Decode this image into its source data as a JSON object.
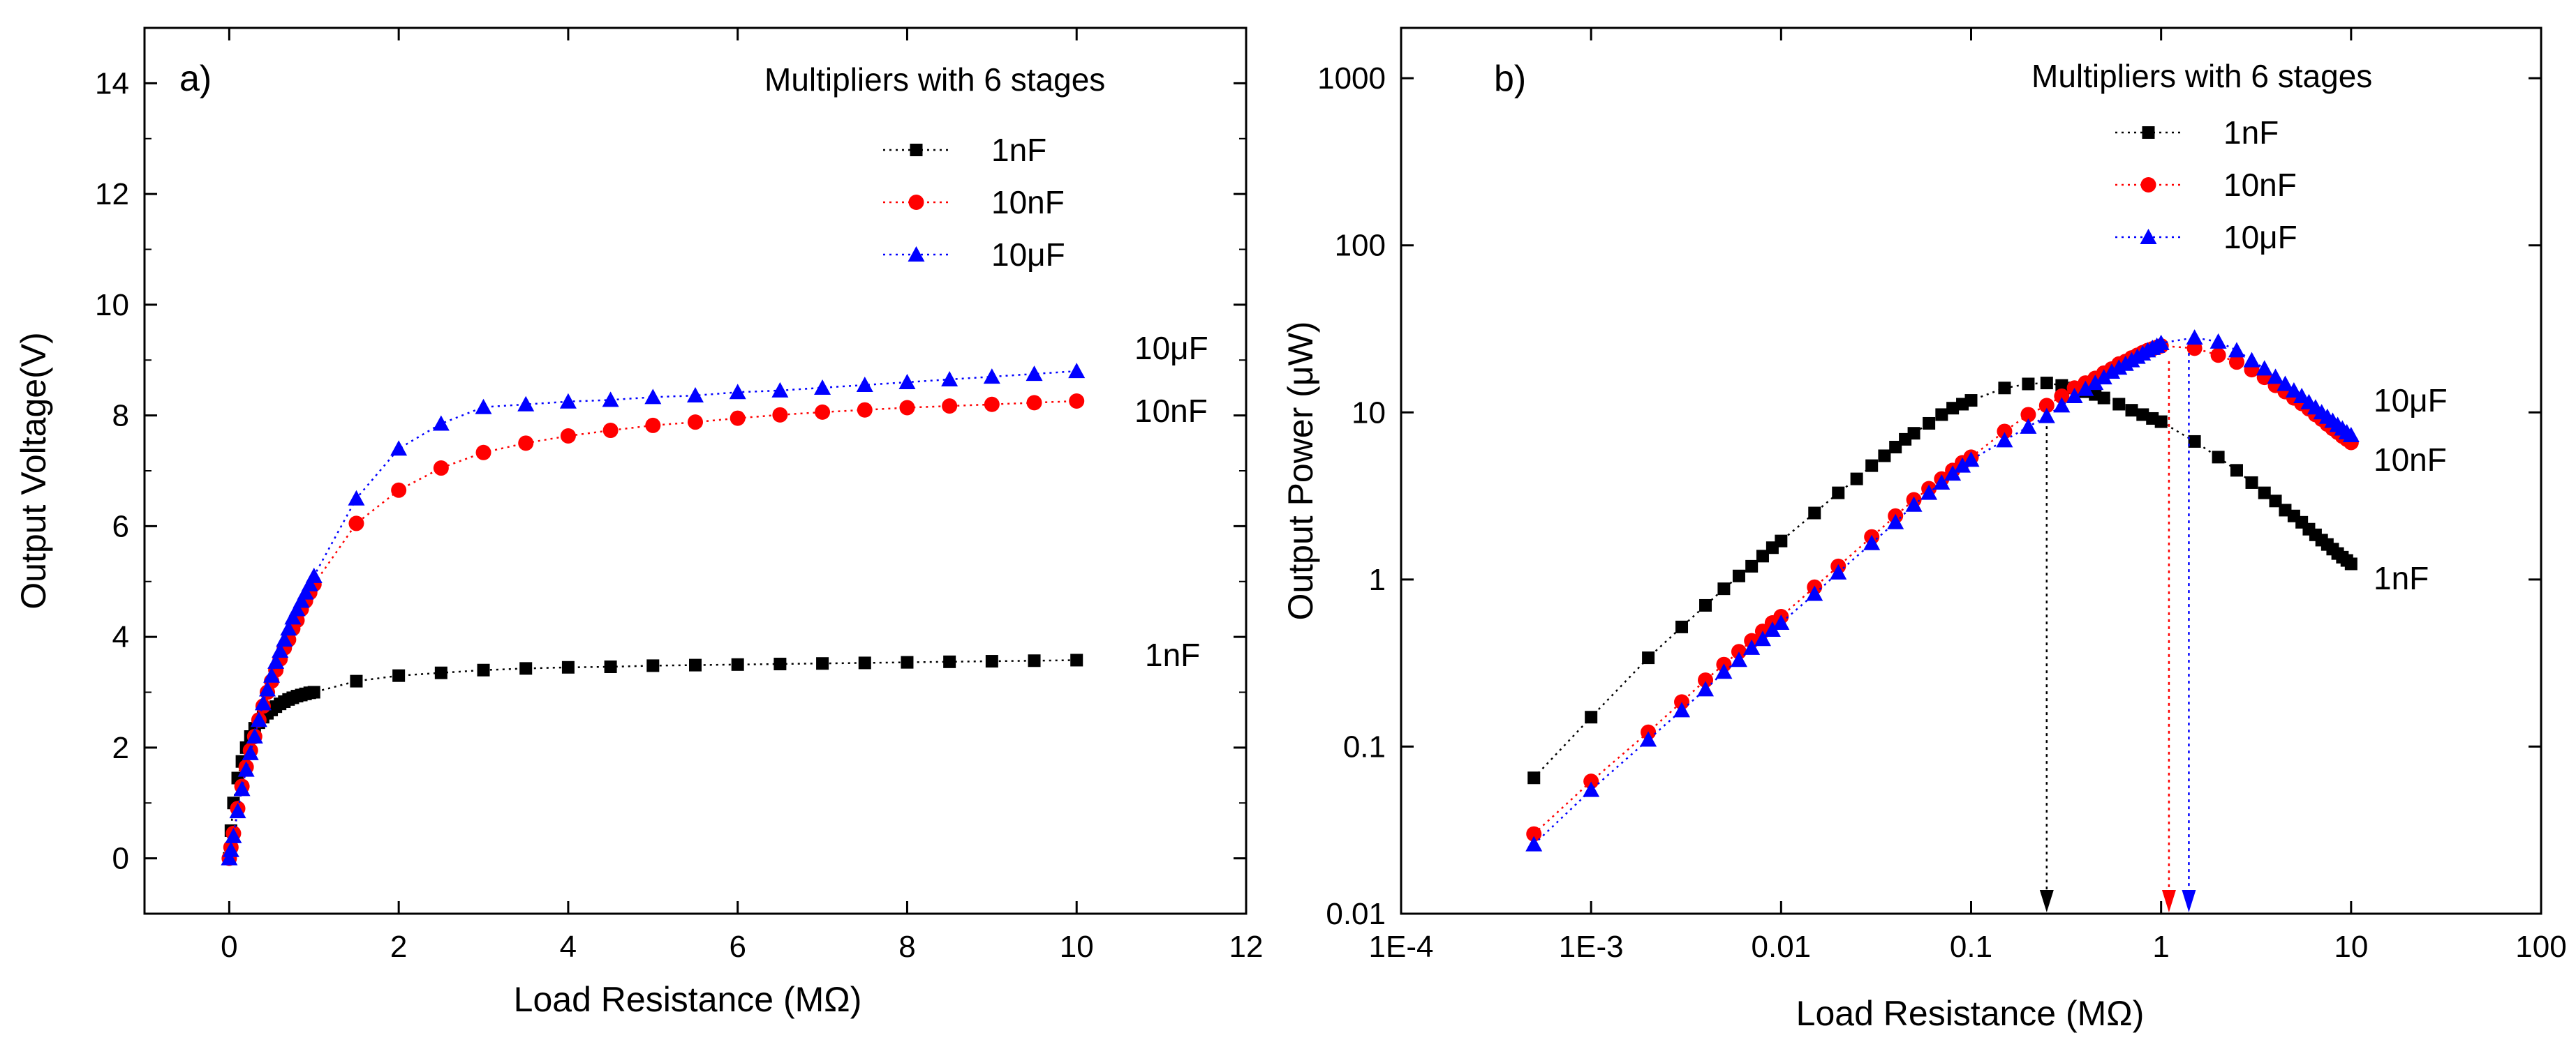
{
  "chart_data": [
    {
      "id": "a",
      "type": "scatter",
      "panel_label": "a)",
      "xlabel": "Load Resistance (MΩ)",
      "ylabel": "Output Voltage(V)",
      "xlim": [
        -1,
        12
      ],
      "ylim": [
        -1,
        15
      ],
      "xticks": [
        0,
        2,
        4,
        6,
        8,
        10,
        12
      ],
      "yticks": [
        0,
        2,
        4,
        6,
        8,
        10,
        12,
        14
      ],
      "xscale": "linear",
      "yscale": "linear",
      "grid": false,
      "legend_title": "Multipliers with 6 stages",
      "legend_position": "top-right",
      "series": [
        {
          "name": "1nF",
          "color": "#000000",
          "marker": "square",
          "end_label": "1nF",
          "x": [
            0.0,
            0.02,
            0.05,
            0.1,
            0.15,
            0.2,
            0.25,
            0.3,
            0.35,
            0.4,
            0.45,
            0.5,
            0.55,
            0.6,
            0.65,
            0.7,
            0.75,
            0.8,
            0.85,
            0.9,
            0.95,
            1.0,
            1.5,
            2.0,
            2.5,
            3.0,
            3.5,
            4.0,
            4.5,
            5.0,
            5.5,
            6.0,
            6.5,
            7.0,
            7.5,
            8.0,
            8.5,
            9.0,
            9.5,
            10.0
          ],
          "y": [
            0.0,
            0.5,
            1.0,
            1.45,
            1.75,
            2.0,
            2.2,
            2.35,
            2.45,
            2.55,
            2.62,
            2.68,
            2.74,
            2.79,
            2.83,
            2.87,
            2.9,
            2.93,
            2.95,
            2.97,
            2.99,
            3.0,
            3.2,
            3.3,
            3.35,
            3.4,
            3.43,
            3.45,
            3.46,
            3.48,
            3.49,
            3.5,
            3.51,
            3.52,
            3.53,
            3.54,
            3.55,
            3.56,
            3.57,
            3.58
          ]
        },
        {
          "name": "10nF",
          "color": "#ff0000",
          "marker": "circle",
          "end_label": "10nF",
          "x": [
            0.0,
            0.02,
            0.05,
            0.1,
            0.15,
            0.2,
            0.25,
            0.3,
            0.35,
            0.4,
            0.45,
            0.5,
            0.55,
            0.6,
            0.65,
            0.7,
            0.75,
            0.8,
            0.85,
            0.9,
            0.95,
            1.0,
            1.5,
            2.0,
            2.5,
            3.0,
            3.5,
            4.0,
            4.5,
            5.0,
            5.5,
            6.0,
            6.5,
            7.0,
            7.5,
            8.0,
            8.5,
            9.0,
            9.5,
            10.0
          ],
          "y": [
            0.0,
            0.2,
            0.45,
            0.9,
            1.3,
            1.65,
            1.95,
            2.2,
            2.5,
            2.75,
            3.0,
            3.2,
            3.4,
            3.6,
            3.8,
            3.95,
            4.15,
            4.3,
            4.5,
            4.65,
            4.8,
            4.95,
            6.05,
            6.65,
            7.05,
            7.33,
            7.5,
            7.63,
            7.73,
            7.82,
            7.88,
            7.95,
            8.01,
            8.06,
            8.1,
            8.14,
            8.17,
            8.2,
            8.23,
            8.26
          ]
        },
        {
          "name": "10μF",
          "color": "#0000ff",
          "marker": "triangle",
          "end_label": "10μF",
          "x": [
            0.0,
            0.02,
            0.05,
            0.1,
            0.15,
            0.2,
            0.25,
            0.3,
            0.35,
            0.4,
            0.45,
            0.5,
            0.55,
            0.6,
            0.65,
            0.7,
            0.75,
            0.8,
            0.85,
            0.9,
            0.95,
            1.0,
            1.5,
            2.0,
            2.5,
            3.0,
            3.5,
            4.0,
            4.5,
            5.0,
            5.5,
            6.0,
            6.5,
            7.0,
            7.5,
            8.0,
            8.5,
            9.0,
            9.5,
            10.0
          ],
          "y": [
            0.0,
            0.15,
            0.4,
            0.85,
            1.25,
            1.6,
            1.9,
            2.2,
            2.5,
            2.8,
            3.05,
            3.3,
            3.55,
            3.75,
            3.95,
            4.15,
            4.35,
            4.5,
            4.65,
            4.8,
            4.95,
            5.1,
            6.5,
            7.4,
            7.85,
            8.15,
            8.2,
            8.25,
            8.28,
            8.33,
            8.36,
            8.42,
            8.45,
            8.5,
            8.55,
            8.6,
            8.65,
            8.7,
            8.75,
            8.8
          ]
        }
      ]
    },
    {
      "id": "b",
      "type": "scatter",
      "panel_label": "b)",
      "xlabel": "Load Resistance (MΩ)",
      "ylabel": "Output Power (μW)",
      "xlim": [
        0.0001,
        100
      ],
      "ylim": [
        0.01,
        2000
      ],
      "xticks": [
        0.0001,
        0.001,
        0.01,
        0.1,
        1,
        10,
        100
      ],
      "xtick_labels": [
        "1E-4",
        "1E-3",
        "0.01",
        "0.1",
        "1",
        "10",
        "100"
      ],
      "yticks": [
        0.01,
        0.1,
        1,
        10,
        100,
        1000
      ],
      "ytick_labels": [
        "0.01",
        "0.1",
        "1",
        "10",
        "100",
        "1000"
      ],
      "xscale": "log",
      "yscale": "log",
      "grid": false,
      "legend_title": "Multipliers with 6 stages",
      "legend_position": "top-right",
      "series": [
        {
          "name": "1nF",
          "color": "#000000",
          "marker": "square",
          "end_label": "1nF",
          "peak_x": 0.25,
          "x": [
            0.0005,
            0.001,
            0.002,
            0.003,
            0.004,
            0.005,
            0.006,
            0.007,
            0.008,
            0.009,
            0.01,
            0.015,
            0.02,
            0.025,
            0.03,
            0.035,
            0.04,
            0.045,
            0.05,
            0.06,
            0.07,
            0.08,
            0.09,
            0.1,
            0.15,
            0.2,
            0.25,
            0.3,
            0.35,
            0.4,
            0.45,
            0.5,
            0.6,
            0.7,
            0.8,
            0.9,
            1.0,
            1.5,
            2.0,
            2.5,
            3.0,
            3.5,
            4.0,
            4.5,
            5.0,
            5.5,
            6.0,
            6.5,
            7.0,
            7.5,
            8.0,
            8.5,
            9.0,
            9.5,
            10.0
          ],
          "y": [
            0.065,
            0.15,
            0.34,
            0.52,
            0.7,
            0.88,
            1.05,
            1.2,
            1.38,
            1.55,
            1.7,
            2.5,
            3.3,
            4.0,
            4.8,
            5.5,
            6.2,
            6.9,
            7.5,
            8.6,
            9.7,
            10.6,
            11.2,
            11.8,
            14.0,
            14.8,
            15.0,
            14.5,
            14.0,
            13.3,
            12.8,
            12.2,
            11.2,
            10.3,
            9.7,
            9.2,
            8.8,
            6.7,
            5.4,
            4.5,
            3.8,
            3.3,
            2.95,
            2.6,
            2.4,
            2.2,
            2.0,
            1.85,
            1.72,
            1.62,
            1.52,
            1.43,
            1.36,
            1.3,
            1.24
          ]
        },
        {
          "name": "10nF",
          "color": "#ff0000",
          "marker": "circle",
          "end_label": "10nF",
          "peak_x": 1.1,
          "x": [
            0.0005,
            0.001,
            0.002,
            0.003,
            0.004,
            0.005,
            0.006,
            0.007,
            0.008,
            0.009,
            0.01,
            0.015,
            0.02,
            0.03,
            0.04,
            0.05,
            0.06,
            0.07,
            0.08,
            0.09,
            0.1,
            0.15,
            0.2,
            0.25,
            0.3,
            0.35,
            0.4,
            0.45,
            0.5,
            0.55,
            0.6,
            0.65,
            0.7,
            0.75,
            0.8,
            0.85,
            0.9,
            0.95,
            1.0,
            1.5,
            2.0,
            2.5,
            3.0,
            3.5,
            4.0,
            4.5,
            5.0,
            5.5,
            6.0,
            6.5,
            7.0,
            7.5,
            8.0,
            8.5,
            9.0,
            9.5,
            10.0
          ],
          "y": [
            0.03,
            0.062,
            0.122,
            0.185,
            0.25,
            0.31,
            0.37,
            0.43,
            0.49,
            0.55,
            0.6,
            0.9,
            1.2,
            1.8,
            2.4,
            3.0,
            3.5,
            4.0,
            4.5,
            5.0,
            5.4,
            7.7,
            9.7,
            11.0,
            12.5,
            14.0,
            15.0,
            16.0,
            17.2,
            18.2,
            19.5,
            20.2,
            21.2,
            22.0,
            22.8,
            23.5,
            24.0,
            24.5,
            25.0,
            24.2,
            22.0,
            20.0,
            18.0,
            16.2,
            14.5,
            13.3,
            12.2,
            11.3,
            10.5,
            9.7,
            9.1,
            8.5,
            8.0,
            7.6,
            7.2,
            6.9,
            6.6
          ]
        },
        {
          "name": "10μF",
          "color": "#0000ff",
          "marker": "triangle",
          "end_label": "10μF",
          "peak_x": 1.4,
          "x": [
            0.0005,
            0.001,
            0.002,
            0.003,
            0.004,
            0.005,
            0.006,
            0.007,
            0.008,
            0.009,
            0.01,
            0.015,
            0.02,
            0.03,
            0.04,
            0.05,
            0.06,
            0.07,
            0.08,
            0.09,
            0.1,
            0.15,
            0.2,
            0.25,
            0.3,
            0.35,
            0.4,
            0.45,
            0.5,
            0.55,
            0.6,
            0.65,
            0.7,
            0.75,
            0.8,
            0.85,
            0.9,
            0.95,
            1.0,
            1.5,
            2.0,
            2.5,
            3.0,
            3.5,
            4.0,
            4.5,
            5.0,
            5.5,
            6.0,
            6.5,
            7.0,
            7.5,
            8.0,
            8.5,
            9.0,
            9.5,
            10.0
          ],
          "y": [
            0.026,
            0.055,
            0.11,
            0.165,
            0.22,
            0.28,
            0.33,
            0.39,
            0.44,
            0.5,
            0.55,
            0.82,
            1.1,
            1.65,
            2.2,
            2.8,
            3.3,
            3.8,
            4.3,
            4.8,
            5.2,
            6.8,
            8.2,
            9.5,
            11.0,
            12.5,
            13.8,
            15.0,
            16.2,
            17.5,
            18.5,
            19.5,
            20.5,
            21.5,
            22.5,
            23.5,
            24.3,
            25.0,
            26.0,
            28.0,
            26.5,
            23.5,
            20.5,
            18.3,
            16.3,
            14.8,
            13.5,
            12.5,
            11.5,
            10.7,
            10.0,
            9.4,
            8.9,
            8.4,
            8.0,
            7.6,
            7.3
          ]
        }
      ]
    }
  ]
}
